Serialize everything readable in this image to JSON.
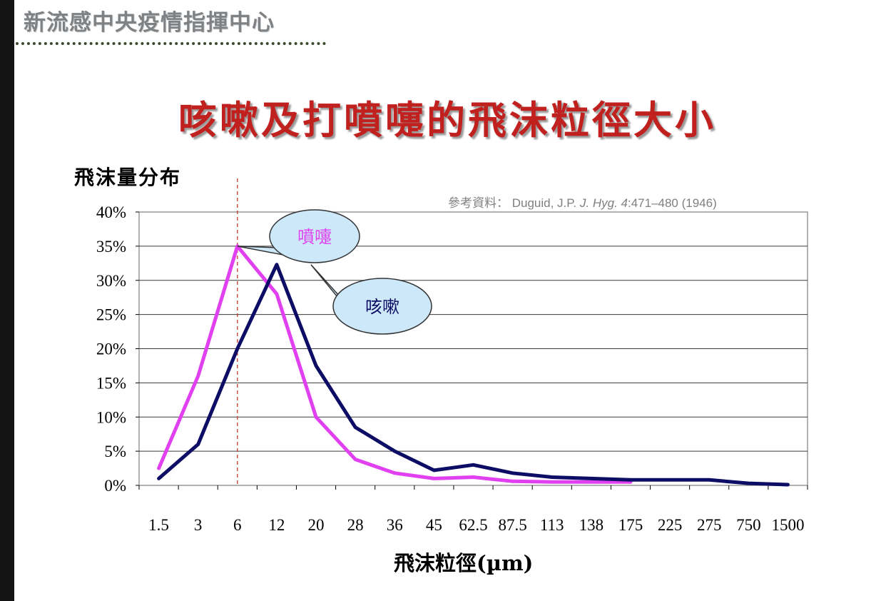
{
  "header": {
    "title": "新流感中央疫情指揮中心"
  },
  "slide": {
    "title": "咳嗽及打噴嚏的飛沫粒徑大小",
    "reference_prefix": "參考資料：",
    "reference_authors": "Duguid, J.P.",
    "reference_journal": "J. Hyg. 4",
    "reference_pages": ":471–480 (1946)"
  },
  "colors": {
    "title": "#c0211f",
    "sneeze": "#e040f0",
    "cough": "#0d0d66",
    "marker": "#c0392b",
    "bubble_fill": "#cde8f8"
  },
  "chart_data": {
    "type": "line",
    "ylabel": "飛沫量分布",
    "xlabel": "飛沫粒徑(µm)",
    "categories": [
      "1.5",
      "3",
      "6",
      "12",
      "20",
      "28",
      "36",
      "45",
      "62.5",
      "87.5",
      "113",
      "138",
      "175",
      "225",
      "275",
      "750",
      "1500"
    ],
    "y_ticks": [
      "0%",
      "5%",
      "10%",
      "15%",
      "20%",
      "25%",
      "30%",
      "35%",
      "40%"
    ],
    "ylim": [
      0,
      40
    ],
    "grid": true,
    "marker_line_category": "6",
    "series": [
      {
        "name": "噴嚏",
        "color": "#e040f0",
        "values": [
          2.5,
          16,
          35,
          28,
          10,
          3.8,
          1.8,
          1.0,
          1.2,
          0.6,
          0.5,
          0.5,
          0.5,
          null,
          null,
          null,
          null
        ]
      },
      {
        "name": "咳嗽",
        "color": "#0d0d66",
        "values": [
          1.0,
          6,
          20,
          32.3,
          17.5,
          8.5,
          5,
          2.2,
          3,
          1.8,
          1.2,
          1.0,
          0.8,
          0.8,
          0.8,
          0.3,
          0.1
        ]
      }
    ]
  }
}
